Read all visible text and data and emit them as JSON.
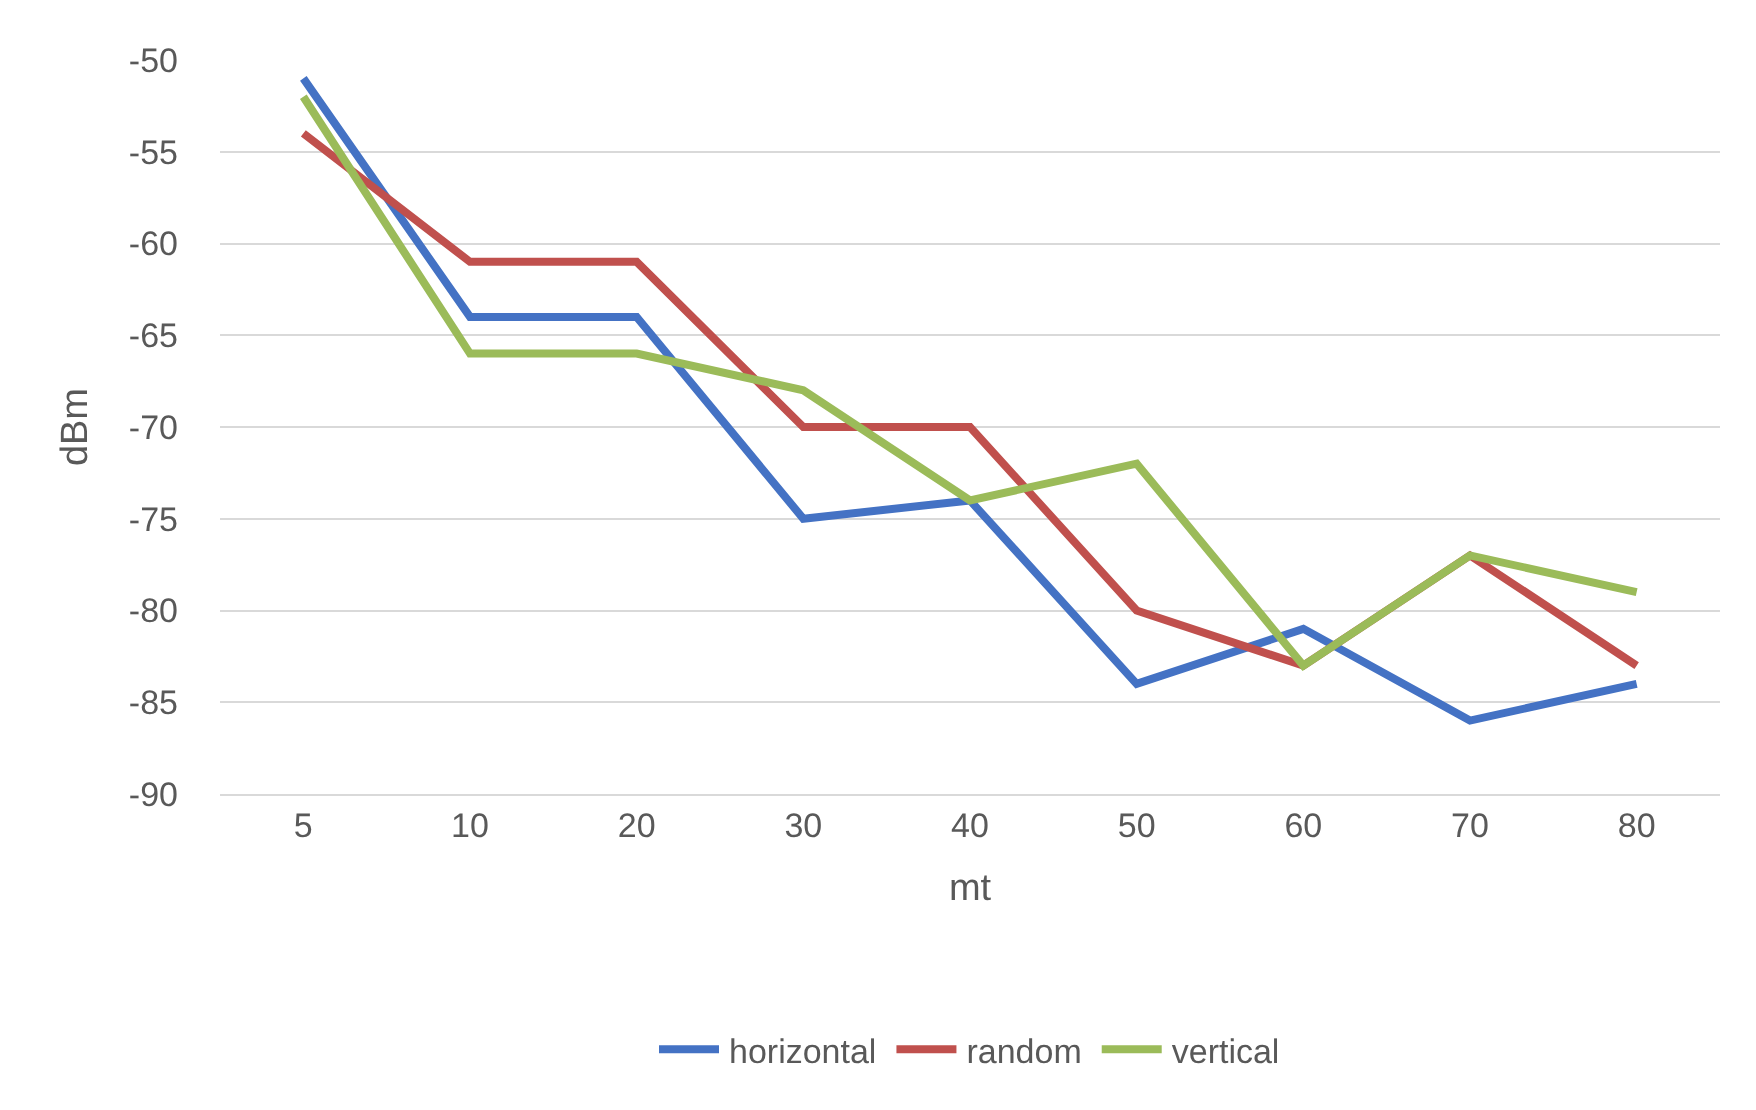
{
  "chart_data": {
    "type": "line",
    "xlabel": "mt",
    "ylabel": "dBm",
    "categories": [
      "5",
      "10",
      "20",
      "30",
      "40",
      "50",
      "60",
      "70",
      "80"
    ],
    "series": [
      {
        "name": "horizontal",
        "color": "#4472c4",
        "values": [
          -51,
          -64,
          -64,
          -75,
          -74,
          -84,
          -81,
          -86,
          -84
        ]
      },
      {
        "name": "random",
        "color": "#c0504d",
        "values": [
          -54,
          -61,
          -61,
          -70,
          -70,
          -80,
          -83,
          -77,
          -83
        ]
      },
      {
        "name": "vertical",
        "color": "#9bbb59",
        "values": [
          -52,
          -66,
          -66,
          -68,
          -74,
          -72,
          -83,
          -77,
          -79
        ]
      }
    ],
    "ylim": [
      -90,
      -50
    ],
    "yticks": [
      -90,
      -85,
      -80,
      -75,
      -70,
      -65,
      -60,
      -55,
      -50
    ],
    "grid": "y",
    "legend": "bottom",
    "marker": "none",
    "line_style": "solid"
  }
}
